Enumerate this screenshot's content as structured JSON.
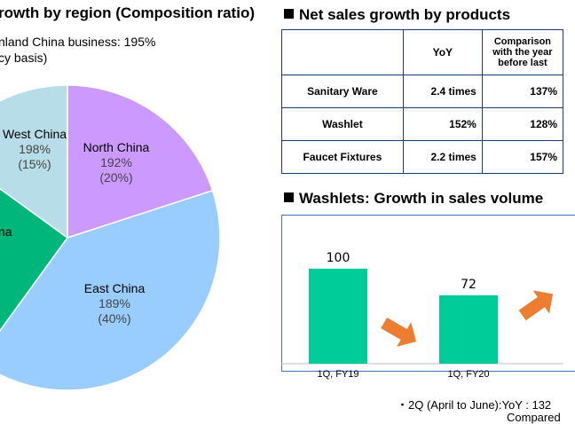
{
  "left": {
    "title": "rowth by region (Composition ratio)",
    "note_line1": "nland China business: 195%",
    "note_line2": "cy basis)"
  },
  "pie": {
    "type": "pie",
    "slices": [
      {
        "name": "North China",
        "growth": "192%",
        "ratio_text": "(20%)",
        "share": 20,
        "color": "#cc99ff"
      },
      {
        "name": "East China",
        "growth": "189%",
        "ratio_text": "(40%)",
        "share": 40,
        "color": "#99ccff"
      },
      {
        "name": "na",
        "growth": "",
        "ratio_text": "",
        "share": 25,
        "color": "#00b67a"
      },
      {
        "name": "West China",
        "growth": "198%",
        "ratio_text": "(15%)",
        "share": 15,
        "color": "#b7dde8"
      }
    ]
  },
  "products": {
    "title": "Net sales growth by products",
    "header_yoy": "YoY",
    "header_compare_1": "Comparison",
    "header_compare_2": "with the year",
    "header_compare_3": "before last",
    "rows": [
      {
        "name": "Sanitary Ware",
        "yoy": "2.4 times",
        "compare": "137%"
      },
      {
        "name": "Washlet",
        "yoy": "152%",
        "compare": "128%"
      },
      {
        "name": "Faucet Fixtures",
        "yoy": "2.2 times",
        "compare": "157%"
      }
    ]
  },
  "washlets": {
    "title": "Washlets: Growth in sales volume",
    "caption_1": "・2Q (April to June):YoY : 132",
    "caption_2": "Compared"
  },
  "chart_data": {
    "type": "bar",
    "categories": [
      "1Q, FY19",
      "1Q, FY20"
    ],
    "values": [
      100,
      72
    ],
    "bar_color": "#00cc99",
    "arrow_color": "#ed7d31",
    "ylim": [
      0,
      140
    ]
  }
}
